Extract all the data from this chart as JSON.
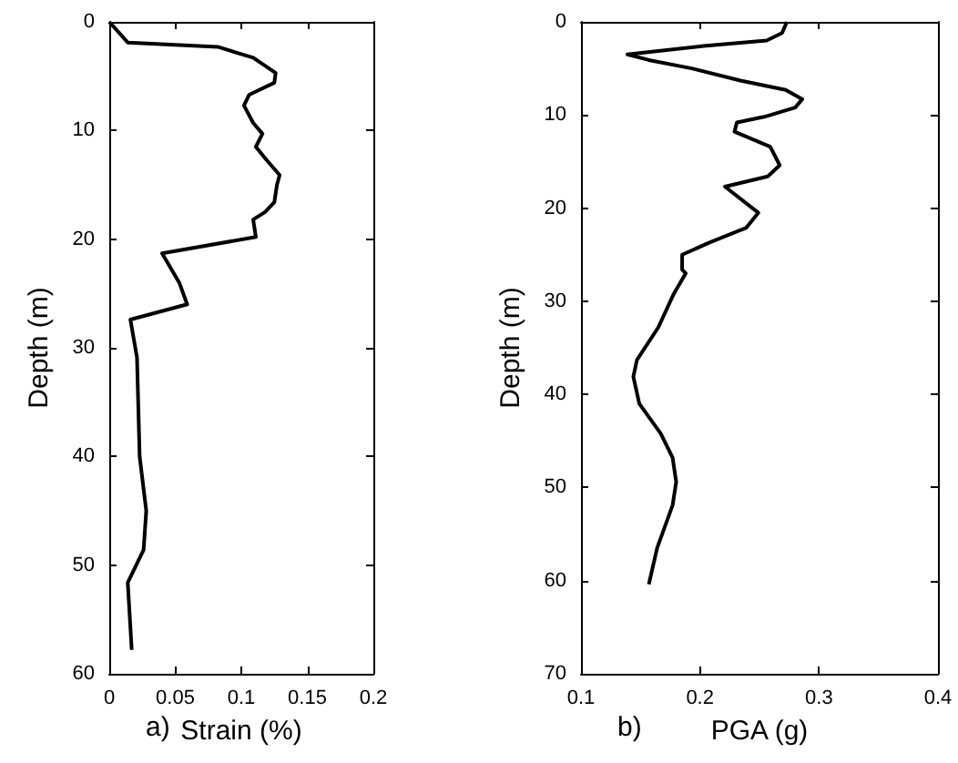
{
  "chart_data": [
    {
      "type": "line",
      "xlabel": "Strain (%)",
      "ylabel": "Depth (m)",
      "annotations": [
        "a)"
      ],
      "marker": "none",
      "line_style": "solid",
      "x": [
        0,
        0.014,
        0.082,
        0.109,
        0.126,
        0.125,
        0.106,
        0.102,
        0.109,
        0.116,
        0.111,
        0.119,
        0.129,
        0.127,
        0.125,
        0.118,
        0.109,
        0.111,
        0.04,
        0.053,
        0.059,
        0.016,
        0.021,
        0.023,
        0.028,
        0.026,
        0.014,
        0.017
      ],
      "series": [
        {
          "color": "#000000",
          "values": [
            0,
            1.9,
            2.3,
            3.3,
            4.7,
            5.6,
            6.7,
            7.7,
            9.3,
            10.3,
            11.5,
            12.7,
            14.1,
            15,
            16.6,
            17.5,
            18.2,
            19.8,
            21.3,
            24,
            26,
            27.4,
            30.9,
            40,
            45,
            48.6,
            51.6,
            57.8
          ]
        }
      ],
      "xlim": [
        0,
        0.2
      ],
      "xticks": [
        0,
        0.05,
        0.1,
        0.15,
        0.2
      ],
      "ylim": [
        60,
        0
      ],
      "yticks": [
        0,
        10,
        20,
        30,
        40,
        50,
        60
      ]
    },
    {
      "type": "line",
      "xlabel": "PGA (g)",
      "ylabel": "Depth (m)",
      "annotations": [
        "b)"
      ],
      "marker": "none",
      "line_style": "solid",
      "x": [
        0.273,
        0.269,
        0.256,
        0.203,
        0.139,
        0.157,
        0.193,
        0.234,
        0.272,
        0.286,
        0.28,
        0.254,
        0.231,
        0.229,
        0.259,
        0.267,
        0.257,
        0.221,
        0.249,
        0.239,
        0.208,
        0.185,
        0.185,
        0.188,
        0.178,
        0.165,
        0.147,
        0.144,
        0.149,
        0.167,
        0.177,
        0.18,
        0.177,
        0.164,
        0.157
      ],
      "series": [
        {
          "color": "#000000",
          "values": [
            0,
            1.2,
            2,
            2.6,
            3.5,
            4.1,
            5,
            6.3,
            7.3,
            8.3,
            9.2,
            10.2,
            10.8,
            11.8,
            13.4,
            15.4,
            16.6,
            17.7,
            20.5,
            22.1,
            23.7,
            25,
            26.6,
            27,
            29.2,
            32.8,
            36.3,
            38.1,
            41,
            44.2,
            46.8,
            49.4,
            51.9,
            56.5,
            60.4
          ]
        }
      ],
      "xlim": [
        0.1,
        0.4
      ],
      "xticks": [
        0.1,
        0.2,
        0.3,
        0.4
      ],
      "ylim": [
        70,
        0
      ],
      "yticks": [
        0,
        10,
        20,
        30,
        40,
        50,
        60,
        70
      ]
    }
  ]
}
